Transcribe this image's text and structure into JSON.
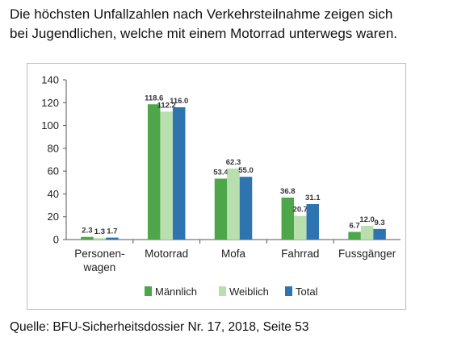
{
  "headline": {
    "line1": "Die höchsten Unfallzahlen nach Verkehrsteilnahme zeigen sich",
    "line2": "bei Jugendlichen, welche mit einem Motorrad unterwegs waren."
  },
  "source": "Quelle: BFU-Sicherheitsdossier Nr. 17, 2018, Seite 53",
  "chart_data": {
    "type": "bar",
    "categories": [
      [
        "Personen-",
        "wagen"
      ],
      [
        "Motorrad"
      ],
      [
        "Mofa"
      ],
      [
        "Fahrrad"
      ],
      [
        "Fussgänger"
      ]
    ],
    "series": [
      {
        "name": "Männlich",
        "color": "#4ea64b",
        "values": [
          2.3,
          118.6,
          53.4,
          36.8,
          6.7
        ]
      },
      {
        "name": "Weiblich",
        "color": "#b9dfae",
        "values": [
          1.3,
          112.2,
          62.3,
          20.7,
          12.0
        ]
      },
      {
        "name": "Total",
        "color": "#2e74b0",
        "values": [
          1.7,
          116.0,
          55.0,
          31.1,
          9.3
        ]
      }
    ],
    "value_labels": [
      [
        "2.3",
        "118.6",
        "53.4",
        "36.8",
        "6.7"
      ],
      [
        "1.3",
        "112.2",
        "62.3",
        "20.7",
        "12.0"
      ],
      [
        "1.7",
        "116.0",
        "55.0",
        "31.1",
        "9.3"
      ]
    ],
    "yticks": [
      "0",
      "20",
      "40",
      "60",
      "80",
      "100",
      "120",
      "140"
    ],
    "ylim": [
      0,
      140
    ],
    "grid": false,
    "legend_position": "bottom"
  }
}
